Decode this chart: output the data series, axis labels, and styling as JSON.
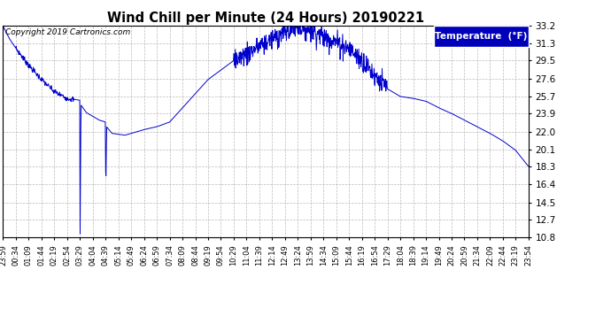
{
  "title": "Wind Chill per Minute (24 Hours) 20190221",
  "copyright": "Copyright 2019 Cartronics.com",
  "legend_label": "Temperature  (°F)",
  "line_color": "#0000cc",
  "background_color": "#ffffff",
  "plot_bg_color": "#ffffff",
  "grid_color": "#aaaaaa",
  "yticks": [
    10.8,
    12.7,
    14.5,
    16.4,
    18.3,
    20.1,
    22.0,
    23.9,
    25.7,
    27.6,
    29.5,
    31.3,
    33.2
  ],
  "ymin": 10.8,
  "ymax": 33.2,
  "xtick_labels": [
    "23:59",
    "00:34",
    "01:09",
    "01:44",
    "02:19",
    "02:54",
    "03:29",
    "04:04",
    "04:39",
    "05:14",
    "05:49",
    "06:24",
    "06:59",
    "07:34",
    "08:09",
    "08:44",
    "09:19",
    "09:54",
    "10:29",
    "11:04",
    "11:39",
    "12:14",
    "12:49",
    "13:24",
    "13:59",
    "14:34",
    "15:09",
    "15:44",
    "16:19",
    "16:54",
    "17:29",
    "18:04",
    "18:39",
    "19:14",
    "19:49",
    "20:24",
    "20:59",
    "21:34",
    "22:09",
    "22:44",
    "23:19",
    "23:54"
  ],
  "knots_t": [
    0,
    0.02,
    0.5,
    1.0,
    2.0,
    3.0,
    4.0,
    5.0,
    6.0,
    6.01,
    6.08,
    6.5,
    7.0,
    7.5,
    8.0,
    8.01,
    8.08,
    8.5,
    9.0,
    9.5,
    10.0,
    10.5,
    11.0,
    12.0,
    13.0,
    14.0,
    15.0,
    16.0,
    17.0,
    18.0,
    19.0,
    20.0,
    21.0,
    22.0,
    23.0,
    24.0,
    25.0,
    26.0,
    27.0,
    28.0,
    29.0,
    30.0,
    31.0,
    32.0,
    33.0,
    34.0,
    35.0,
    36.0,
    37.0,
    38.0,
    39.0,
    40.0,
    41.0
  ],
  "knots_v": [
    32.4,
    33.1,
    31.8,
    30.8,
    29.0,
    27.5,
    26.2,
    25.5,
    25.3,
    10.8,
    24.8,
    24.0,
    23.6,
    23.2,
    23.0,
    14.5,
    22.5,
    21.8,
    21.7,
    21.6,
    21.8,
    22.0,
    22.2,
    22.5,
    23.0,
    24.5,
    26.0,
    27.5,
    28.5,
    29.5,
    30.2,
    31.0,
    31.8,
    32.5,
    33.2,
    32.8,
    32.0,
    31.5,
    30.8,
    29.5,
    28.0,
    26.5,
    25.7,
    25.5,
    25.2,
    24.5,
    23.9,
    23.2,
    22.5,
    21.8,
    21.0,
    20.0,
    18.3
  ]
}
